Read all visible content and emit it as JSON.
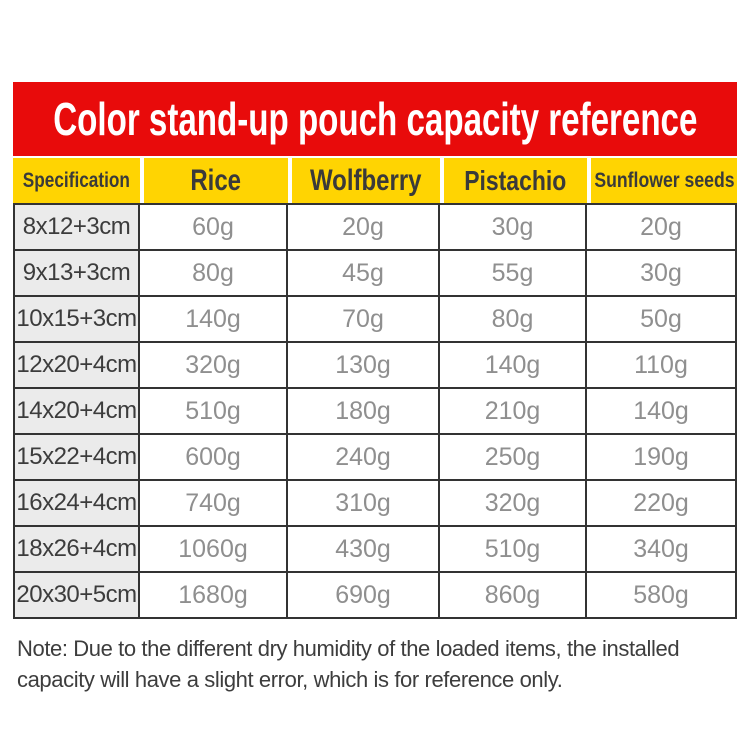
{
  "colors": {
    "page-bg": "#ffffff",
    "banner-red": "#e80b0b",
    "title-text": "#ffffff",
    "header-yellow": "#ffd402",
    "header-text": "#3a3a3a",
    "spec-gray": "#ebebeb",
    "spec-text": "#3c3c3c",
    "value-text": "#8f8f8f",
    "border-dark": "#333333",
    "note-text": "#3d3d3d"
  },
  "banner": {
    "title": "Color stand-up pouch capacity reference"
  },
  "table": {
    "columns": [
      "Specification",
      "Rice",
      "Wolfberry",
      "Pistachio",
      "Sunflower seeds"
    ]
  },
  "note": {
    "line1": "Note: Due to the different dry humidity of the loaded items, the installed",
    "line2": "capacity will have a slight error, which is for reference only."
  },
  "chart_data": {
    "type": "table",
    "title": "Color stand-up pouch capacity reference",
    "row_header_label": "Specification",
    "categories": [
      "8x12+3cm",
      "9x13+3cm",
      "10x15+3cm",
      "12x20+4cm",
      "14x20+4cm",
      "15x22+4cm",
      "16x24+4cm",
      "18x26+4cm",
      "20x30+5cm"
    ],
    "series": [
      {
        "name": "Rice",
        "values": [
          "60g",
          "80g",
          "140g",
          "320g",
          "510g",
          "600g",
          "740g",
          "1060g",
          "1680g"
        ]
      },
      {
        "name": "Wolfberry",
        "values": [
          "20g",
          "45g",
          "70g",
          "130g",
          "180g",
          "240g",
          "310g",
          "430g",
          "690g"
        ]
      },
      {
        "name": "Pistachio",
        "values": [
          "30g",
          "55g",
          "80g",
          "140g",
          "210g",
          "250g",
          "320g",
          "510g",
          "860g"
        ]
      },
      {
        "name": "Sunflower seeds",
        "values": [
          "20g",
          "30g",
          "50g",
          "110g",
          "140g",
          "190g",
          "220g",
          "340g",
          "580g"
        ]
      }
    ],
    "note": "Note: Due to the different dry humidity of the loaded items, the installed capacity will have a slight error, which is for reference only."
  }
}
